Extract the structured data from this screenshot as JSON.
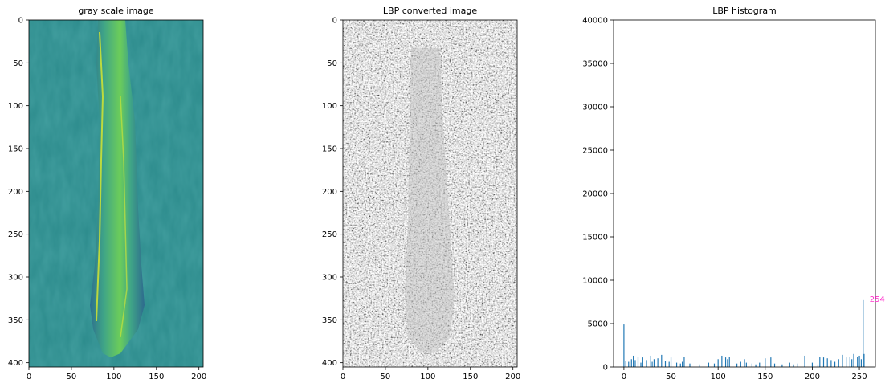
{
  "chart_data": [
    {
      "type": "image",
      "title": "gray scale image",
      "colormap": "viridis",
      "xlim": [
        0,
        205
      ],
      "ylim": [
        405,
        0
      ],
      "xticks": [
        0,
        50,
        100,
        150,
        200
      ],
      "yticks": [
        0,
        50,
        100,
        150,
        200,
        250,
        300,
        350,
        400
      ],
      "colors": {
        "dark": "#3b4f8a",
        "mid": "#2a8f8c",
        "bright": "#d8e219"
      }
    },
    {
      "type": "image",
      "title": "LBP converted image",
      "colormap": "gray",
      "xlim": [
        0,
        205
      ],
      "ylim": [
        405,
        0
      ],
      "xticks": [
        0,
        50,
        100,
        150,
        200
      ],
      "yticks": [
        0,
        50,
        100,
        150,
        200,
        250,
        300,
        350,
        400
      ]
    },
    {
      "type": "bar",
      "title": "LBP histogram",
      "xlim": [
        -11,
        267
      ],
      "ylim": [
        0,
        40000
      ],
      "xticks": [
        0,
        50,
        100,
        150,
        200,
        250
      ],
      "yticks": [
        0,
        5000,
        10000,
        15000,
        20000,
        25000,
        30000,
        35000,
        40000
      ],
      "bar_color": "#1f77b4",
      "annotation": {
        "text": "254",
        "x": 254,
        "y": 7700,
        "color": "#ff33cc"
      },
      "bins": [
        0,
        2,
        5,
        8,
        10,
        12,
        15,
        18,
        20,
        24,
        28,
        30,
        32,
        36,
        40,
        44,
        48,
        50,
        56,
        60,
        62,
        64,
        70,
        80,
        90,
        96,
        100,
        104,
        108,
        110,
        112,
        120,
        124,
        128,
        130,
        136,
        140,
        144,
        150,
        156,
        160,
        168,
        176,
        180,
        184,
        192,
        200,
        206,
        208,
        212,
        216,
        220,
        224,
        228,
        232,
        236,
        240,
        242,
        244,
        248,
        250,
        252,
        254,
        255
      ],
      "values": [
        4900,
        700,
        600,
        900,
        1300,
        800,
        1200,
        500,
        1100,
        800,
        1300,
        600,
        900,
        1000,
        1400,
        700,
        600,
        1100,
        500,
        400,
        600,
        1200,
        400,
        300,
        500,
        400,
        900,
        1300,
        1100,
        900,
        1200,
        400,
        600,
        900,
        500,
        400,
        300,
        500,
        1000,
        1100,
        400,
        300,
        500,
        300,
        400,
        1300,
        500,
        300,
        1200,
        1100,
        1000,
        800,
        600,
        900,
        1400,
        1100,
        1200,
        900,
        1500,
        1200,
        1300,
        900,
        7700,
        1500
      ]
    }
  ]
}
